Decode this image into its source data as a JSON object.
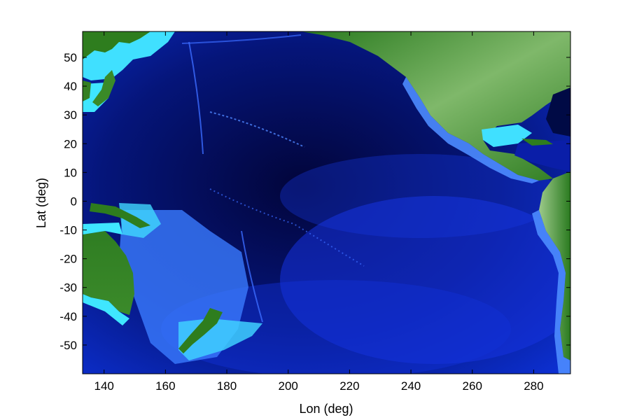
{
  "chart_data": {
    "type": "heatmap",
    "title": "",
    "xlabel": "Lon (deg)",
    "ylabel": "Lat (deg)",
    "xlim": [
      133,
      292
    ],
    "ylim": [
      -60,
      59
    ],
    "xticks": [
      140,
      160,
      180,
      200,
      220,
      240,
      260,
      280
    ],
    "yticks": [
      50,
      40,
      30,
      20,
      10,
      0,
      -10,
      -20,
      -30,
      -40,
      -50
    ],
    "xtick_labels": [
      "140",
      "160",
      "180",
      "200",
      "220",
      "240",
      "260",
      "280"
    ],
    "ytick_labels": [
      "50",
      "40",
      "30",
      "20",
      "10",
      "0",
      "-10",
      "-20",
      "-30",
      "-40",
      "-50"
    ],
    "grid": false,
    "colormap": {
      "deep_ocean": "#000a45",
      "ocean": "#0a1ec8",
      "shallow": "#3c7cff",
      "shelf": "#3fe6ff",
      "lowland": "#2e7d1e",
      "highland": "#8fc07a"
    }
  }
}
